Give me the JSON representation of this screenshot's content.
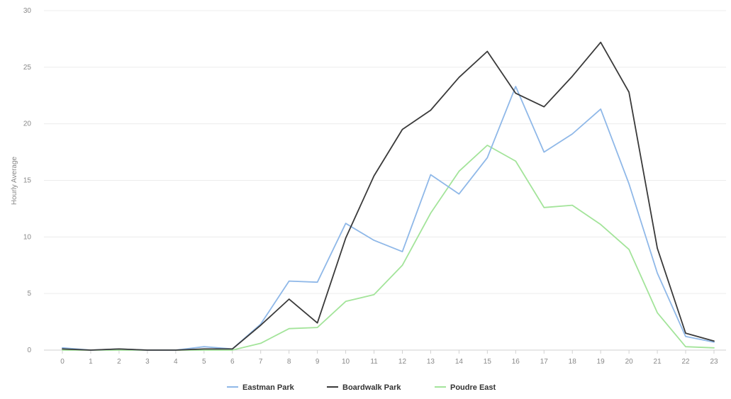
{
  "chart_data": {
    "type": "line",
    "title": "",
    "xlabel": "",
    "ylabel": "Hourly Average",
    "x": [
      0,
      1,
      2,
      3,
      4,
      5,
      6,
      7,
      8,
      9,
      10,
      11,
      12,
      13,
      14,
      15,
      16,
      17,
      18,
      19,
      20,
      21,
      22,
      23
    ],
    "ylim": [
      0,
      30
    ],
    "yticks": [
      0,
      5,
      10,
      15,
      20,
      25,
      30
    ],
    "grid": true,
    "legend_position": "bottom-center",
    "series": [
      {
        "name": "Eastman Park",
        "color": "#8fb8e8",
        "values": [
          0.2,
          0.0,
          0.1,
          0.0,
          0.0,
          0.3,
          0.1,
          2.3,
          6.1,
          6.0,
          11.2,
          9.7,
          8.7,
          15.5,
          13.8,
          17.0,
          23.3,
          17.5,
          19.1,
          21.3,
          14.7,
          6.8,
          1.2,
          0.7
        ]
      },
      {
        "name": "Boardwalk Park",
        "color": "#3a3a3a",
        "values": [
          0.1,
          0.0,
          0.1,
          0.0,
          0.0,
          0.1,
          0.1,
          2.2,
          4.5,
          2.4,
          9.9,
          15.4,
          19.5,
          21.2,
          24.1,
          26.4,
          22.7,
          21.5,
          24.2,
          27.2,
          22.8,
          9.0,
          1.5,
          0.8
        ]
      },
      {
        "name": "Poudre East",
        "color": "#a3e49a",
        "values": [
          0.0,
          0.0,
          0.0,
          0.0,
          0.0,
          0.0,
          0.0,
          0.6,
          1.9,
          2.0,
          4.3,
          4.9,
          7.5,
          12.1,
          15.8,
          18.1,
          16.7,
          12.6,
          12.8,
          11.1,
          8.9,
          3.3,
          0.3,
          0.2
        ]
      }
    ]
  }
}
